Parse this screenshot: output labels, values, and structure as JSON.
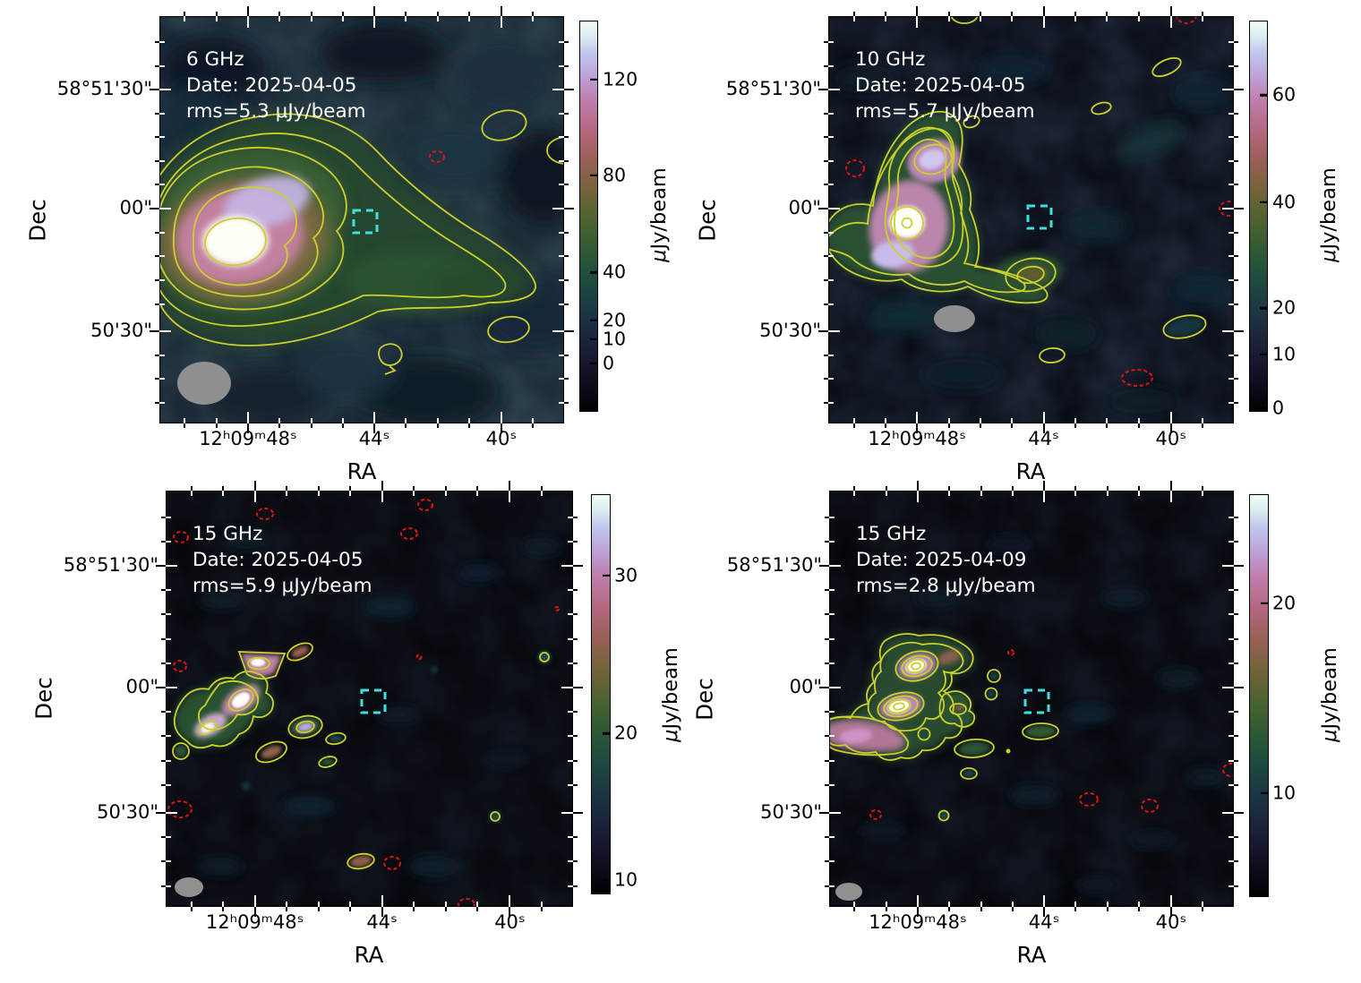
{
  "figure": {
    "background": "#ffffff",
    "contour_color": "#cbd02a",
    "negative_contour_color": "#e01414",
    "region_box_color": "#3fe0e0",
    "beam_color": "#8f8f8f"
  },
  "panels": [
    {
      "freq": "6 GHz",
      "date": "Date: 2025-04-05",
      "rms": "rms=5.3 μJy/beam",
      "xlabel": "RA",
      "ylabel": "Dec",
      "x_ticks": [
        {
          "label": "12ʰ09ᵐ48ˢ",
          "pos": 0.219
        },
        {
          "label": "44ˢ",
          "pos": 0.531
        },
        {
          "label": "40ˢ",
          "pos": 0.845
        }
      ],
      "y_ticks": [
        {
          "label": "58°51'30\"",
          "pos": 0.18
        },
        {
          "label": "00\"",
          "pos": 0.473
        },
        {
          "label": "50'30\"",
          "pos": 0.774
        }
      ],
      "colorbar": {
        "mu": "μ",
        "unit": "Jy/beam",
        "ticks": [
          {
            "label": "120",
            "pos": 0.149
          },
          {
            "label": "80",
            "pos": 0.395
          },
          {
            "label": "40",
            "pos": 0.644
          },
          {
            "label": "20",
            "pos": 0.768
          },
          {
            "label": "10",
            "pos": 0.816
          },
          {
            "label": "0",
            "pos": 0.878
          }
        ]
      }
    },
    {
      "freq": "10 GHz",
      "date": "Date: 2025-04-05",
      "rms": "rms=5.7 μJy/beam",
      "xlabel": "RA",
      "ylabel": "Dec",
      "x_ticks": [
        {
          "label": "12ʰ09ᵐ48ˢ",
          "pos": 0.219
        },
        {
          "label": "44ˢ",
          "pos": 0.531
        },
        {
          "label": "40ˢ",
          "pos": 0.845
        }
      ],
      "y_ticks": [
        {
          "label": "58°51'30\"",
          "pos": 0.18
        },
        {
          "label": "00\"",
          "pos": 0.473
        },
        {
          "label": "50'30\"",
          "pos": 0.774
        }
      ],
      "colorbar": {
        "mu": "μ",
        "unit": "Jy/beam",
        "ticks": [
          {
            "label": "60",
            "pos": 0.189
          },
          {
            "label": "40",
            "pos": 0.464
          },
          {
            "label": "20",
            "pos": 0.736
          },
          {
            "label": "10",
            "pos": 0.855
          },
          {
            "label": "0",
            "pos": 0.993
          }
        ]
      }
    },
    {
      "freq": "15 GHz",
      "date": "Date: 2025-04-05",
      "rms": "rms=5.9 μJy/beam",
      "xlabel": "RA",
      "ylabel": "Dec",
      "x_ticks": [
        {
          "label": "12ʰ09ᵐ48ˢ",
          "pos": 0.219
        },
        {
          "label": "44ˢ",
          "pos": 0.531
        },
        {
          "label": "40ˢ",
          "pos": 0.845
        }
      ],
      "y_ticks": [
        {
          "label": "58°51'30\"",
          "pos": 0.18
        },
        {
          "label": "00\"",
          "pos": 0.473
        },
        {
          "label": "50'30\"",
          "pos": 0.774
        }
      ],
      "colorbar": {
        "mu": "μ",
        "unit": "Jy/beam",
        "ticks": [
          {
            "label": "30",
            "pos": 0.202
          },
          {
            "label": "20",
            "pos": 0.598
          },
          {
            "label": "10",
            "pos": 0.966
          }
        ]
      }
    },
    {
      "freq": "15 GHz",
      "date": "Date: 2025-04-09",
      "rms": "rms=2.8 μJy/beam",
      "xlabel": "RA",
      "ylabel": "Dec",
      "x_ticks": [
        {
          "label": "12ʰ09ᵐ48ˢ",
          "pos": 0.219
        },
        {
          "label": "44ˢ",
          "pos": 0.531
        },
        {
          "label": "40ˢ",
          "pos": 0.845
        }
      ],
      "y_ticks": [
        {
          "label": "58°51'30\"",
          "pos": 0.18
        },
        {
          "label": "00\"",
          "pos": 0.473
        },
        {
          "label": "50'30\"",
          "pos": 0.774
        }
      ],
      "colorbar": {
        "mu": "μ",
        "unit": "Jy/beam",
        "ticks": [
          {
            "label": "20",
            "pos": 0.27
          },
          {
            "label": "10",
            "pos": 0.743
          }
        ]
      }
    }
  ],
  "chart_data": [
    {
      "type": "heatmap",
      "title": "6 GHz",
      "date": "2025-04-05",
      "rms_uJy_per_beam": 5.3,
      "xlabel": "RA",
      "ylabel": "Dec",
      "x_tick_labels": [
        "12h09m48s",
        "44s",
        "40s"
      ],
      "y_tick_labels": [
        "58°51'30\"",
        "00\"",
        "50'30\""
      ],
      "colorbar_label": "μJy/beam",
      "colorbar_ticks": [
        0,
        10,
        20,
        40,
        80,
        120
      ],
      "colorbar_range_estimate_uJy": [
        -20,
        145
      ],
      "features": "Bright extended radio source left of center with ~7 nested yellow positive contours and white/pink core; yellow contour islands upper-right and lower-right; one small red dashed negative contour; cyan dashed square region box near field center; gray beam ellipse lower-left"
    },
    {
      "type": "heatmap",
      "title": "10 GHz",
      "date": "2025-04-05",
      "rms_uJy_per_beam": 5.7,
      "xlabel": "RA",
      "ylabel": "Dec",
      "x_tick_labels": [
        "12h09m48s",
        "44s",
        "40s"
      ],
      "y_tick_labels": [
        "58°51'30\"",
        "00\"",
        "50'30\""
      ],
      "colorbar_label": "μJy/beam",
      "colorbar_ticks": [
        0,
        10,
        20,
        40,
        60
      ],
      "colorbar_range_estimate_uJy": [
        0,
        74
      ],
      "features": "Compact source left of center with ringed white core and pink body, short tail to lower right; several small yellow contour islands; red dashed negative contours at edges; cyan dashed square region box; gray beam ellipse below source"
    },
    {
      "type": "heatmap",
      "title": "15 GHz",
      "date": "2025-04-05",
      "rms_uJy_per_beam": 5.9,
      "xlabel": "RA",
      "ylabel": "Dec",
      "x_tick_labels": [
        "12h09m48s",
        "44s",
        "40s"
      ],
      "y_tick_labels": [
        "58°51'30\"",
        "00\"",
        "50'30\""
      ],
      "colorbar_label": "μJy/beam",
      "colorbar_ticks": [
        10,
        20,
        30
      ],
      "colorbar_range_estimate_uJy": [
        9,
        35
      ],
      "features": "Source fragmented into small clumpy knots with yellow contours on left; scattered faint islands and red dashed negative contours across field; cyan dashed square region box; small gray beam ellipse lower-left"
    },
    {
      "type": "heatmap",
      "title": "15 GHz",
      "date": "2025-04-09",
      "rms_uJy_per_beam": 2.8,
      "xlabel": "RA",
      "ylabel": "Dec",
      "x_tick_labels": [
        "12h09m48s",
        "44s",
        "40s"
      ],
      "y_tick_labels": [
        "58°51'30\"",
        "00\"",
        "50'30\""
      ],
      "colorbar_label": "μJy/beam",
      "colorbar_ticks": [
        10,
        20
      ],
      "colorbar_range_estimate_uJy": [
        5,
        26
      ],
      "features": "Two bright multi-ring knots with pink arm extending lower-left, several green contour islands; a few red dashed negative contours; cyan dashed square region box; small gray beam ellipse lower-left"
    }
  ]
}
